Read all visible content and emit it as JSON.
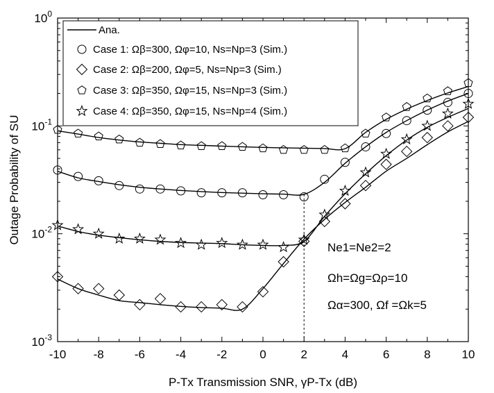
{
  "chart_data": {
    "type": "line",
    "xlabel": "P-Tx Transmission SNR, γP-Tx (dB)",
    "ylabel": "Outage Probability of SU",
    "xlim": [
      -10,
      10
    ],
    "ylim": [
      0.001,
      1
    ],
    "yscale": "log",
    "xticks": [
      -10,
      -8,
      -6,
      -4,
      -2,
      0,
      2,
      4,
      6,
      8,
      10
    ],
    "yticks": [
      0.001,
      0.01,
      0.1,
      1
    ],
    "grid": false,
    "legend_position": "top-left",
    "legend": [
      {
        "marker": "line",
        "text": "Ana."
      },
      {
        "marker": "circle",
        "text": "Case 1: Ωβ=300, Ωφ=10, Ns=Np=3 (Sim.)"
      },
      {
        "marker": "diamond",
        "text": "Case 2: Ωβ=200, Ωφ=5, Ns=Np=3 (Sim.)"
      },
      {
        "marker": "pentagon",
        "text": "Case 3: Ωβ=350, Ωφ=15, Ns=Np=3 (Sim.)"
      },
      {
        "marker": "star",
        "text": "Case 4: Ωβ=350, Ωφ=15, Ns=Np=4 (Sim.)"
      }
    ],
    "annotations": [
      "Ne1=Ne2=2",
      "Ωh=Ωg=Ωρ=10",
      "Ωα=300, Ωf =Ωk=5"
    ],
    "dashed_reference_x": 2,
    "series": [
      {
        "marker": "circle",
        "x": [
          -10,
          -9,
          -8,
          -7,
          -6,
          -5,
          -4,
          -3,
          -2,
          -1,
          0,
          1,
          2,
          3,
          4,
          5,
          6,
          7,
          8,
          9,
          10
        ],
        "analytical": [
          0.038,
          0.033,
          0.0305,
          0.0285,
          0.027,
          0.026,
          0.0252,
          0.0246,
          0.0241,
          0.0238,
          0.0235,
          0.0233,
          0.0232,
          0.03,
          0.045,
          0.064,
          0.087,
          0.112,
          0.14,
          0.17,
          0.2
        ],
        "simulated": [
          0.039,
          0.034,
          0.031,
          0.028,
          0.026,
          0.026,
          0.025,
          0.024,
          0.024,
          0.024,
          0.023,
          0.023,
          0.022,
          0.032,
          0.046,
          0.064,
          0.085,
          0.112,
          0.14,
          0.165,
          0.2
        ]
      },
      {
        "marker": "diamond",
        "x": [
          -10,
          -9,
          -8,
          -7,
          -6,
          -5,
          -4,
          -3,
          -2,
          -1,
          0,
          1,
          2,
          3,
          4,
          5,
          6,
          7,
          8,
          9,
          10
        ],
        "analytical": [
          0.0038,
          0.0031,
          0.0027,
          0.0024,
          0.0023,
          0.0022,
          0.00212,
          0.00207,
          0.00204,
          0.002,
          0.0031,
          0.0053,
          0.0089,
          0.0136,
          0.0195,
          0.027,
          0.038,
          0.05,
          0.067,
          0.088,
          0.11
        ],
        "simulated": [
          0.004,
          0.0031,
          0.0031,
          0.0027,
          0.0022,
          0.0025,
          0.0021,
          0.0021,
          0.0022,
          0.0021,
          0.0029,
          0.0055,
          0.0085,
          0.013,
          0.019,
          0.028,
          0.044,
          0.058,
          0.078,
          0.1,
          0.12
        ]
      },
      {
        "marker": "pentagon",
        "x": [
          -10,
          -9,
          -8,
          -7,
          -6,
          -5,
          -4,
          -3,
          -2,
          -1,
          0,
          1,
          2,
          3,
          4,
          5,
          6,
          7,
          8,
          9,
          10
        ],
        "analytical": [
          0.09,
          0.084,
          0.078,
          0.074,
          0.071,
          0.069,
          0.067,
          0.066,
          0.065,
          0.064,
          0.0632,
          0.0626,
          0.0621,
          0.0617,
          0.0615,
          0.087,
          0.115,
          0.143,
          0.172,
          0.202,
          0.232
        ],
        "simulated": [
          0.092,
          0.085,
          0.08,
          0.075,
          0.07,
          0.068,
          0.066,
          0.065,
          0.065,
          0.064,
          0.062,
          0.06,
          0.06,
          0.06,
          0.062,
          0.085,
          0.12,
          0.15,
          0.18,
          0.21,
          0.25
        ]
      },
      {
        "marker": "star",
        "x": [
          -10,
          -9,
          -8,
          -7,
          -6,
          -5,
          -4,
          -3,
          -2,
          -1,
          0,
          1,
          2,
          3,
          4,
          5,
          6,
          7,
          8,
          9,
          10
        ],
        "analytical": [
          0.0118,
          0.0105,
          0.0097,
          0.0092,
          0.0088,
          0.0085,
          0.0083,
          0.0082,
          0.0081,
          0.0079,
          0.0078,
          0.0078,
          0.0085,
          0.0145,
          0.0235,
          0.036,
          0.053,
          0.074,
          0.097,
          0.12,
          0.145
        ],
        "simulated": [
          0.012,
          0.011,
          0.01,
          0.009,
          0.009,
          0.0088,
          0.0082,
          0.0079,
          0.0082,
          0.0079,
          0.0079,
          0.0075,
          0.0088,
          0.015,
          0.025,
          0.037,
          0.055,
          0.075,
          0.1,
          0.13,
          0.16
        ]
      }
    ]
  }
}
